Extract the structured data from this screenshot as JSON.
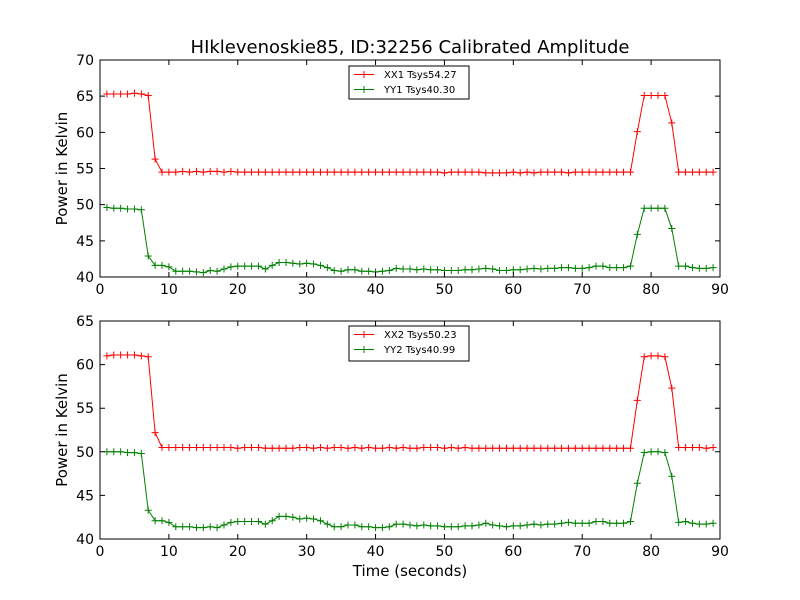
{
  "chart_data": [
    {
      "type": "line",
      "title": "HIklevenoskie85, ID:32256 Calibrated Amplitude",
      "xlabel": "",
      "ylabel": "Power in Kelvin",
      "xlim": [
        0,
        90
      ],
      "ylim": [
        40,
        70
      ],
      "xticks": [
        0,
        10,
        20,
        30,
        40,
        50,
        60,
        70,
        80,
        90
      ],
      "yticks": [
        40,
        45,
        50,
        55,
        60,
        65,
        70
      ],
      "grid": false,
      "legend": "top-center",
      "series": [
        {
          "name": "XX1 Tsys54.27",
          "color": "#ff0000",
          "marker": "+",
          "x": [
            1,
            2,
            3,
            4,
            5,
            6,
            7,
            8,
            9,
            10,
            11,
            12,
            13,
            14,
            15,
            16,
            17,
            18,
            19,
            20,
            21,
            22,
            23,
            24,
            25,
            26,
            27,
            28,
            29,
            30,
            31,
            32,
            33,
            34,
            35,
            36,
            37,
            38,
            39,
            40,
            41,
            42,
            43,
            44,
            45,
            46,
            47,
            48,
            49,
            50,
            51,
            52,
            53,
            54,
            55,
            56,
            57,
            58,
            59,
            60,
            61,
            62,
            63,
            64,
            65,
            66,
            67,
            68,
            69,
            70,
            71,
            72,
            73,
            74,
            75,
            76,
            77,
            78,
            79,
            80,
            81,
            82,
            83,
            84,
            85,
            86,
            87,
            88,
            89
          ],
          "y": [
            65.3,
            65.3,
            65.3,
            65.3,
            65.4,
            65.3,
            65.1,
            56.3,
            54.5,
            54.5,
            54.5,
            54.6,
            54.5,
            54.6,
            54.5,
            54.6,
            54.6,
            54.5,
            54.6,
            54.5,
            54.5,
            54.5,
            54.5,
            54.5,
            54.5,
            54.5,
            54.5,
            54.5,
            54.5,
            54.5,
            54.5,
            54.5,
            54.5,
            54.5,
            54.5,
            54.5,
            54.5,
            54.5,
            54.5,
            54.5,
            54.5,
            54.5,
            54.5,
            54.5,
            54.5,
            54.5,
            54.5,
            54.5,
            54.5,
            54.4,
            54.5,
            54.5,
            54.5,
            54.5,
            54.5,
            54.4,
            54.4,
            54.4,
            54.4,
            54.5,
            54.4,
            54.5,
            54.4,
            54.5,
            54.5,
            54.5,
            54.5,
            54.4,
            54.5,
            54.5,
            54.5,
            54.5,
            54.5,
            54.5,
            54.5,
            54.5,
            54.5,
            60.1,
            65.1,
            65.1,
            65.1,
            65.1,
            61.3,
            54.5,
            54.5,
            54.5,
            54.5,
            54.5,
            54.5
          ]
        },
        {
          "name": "YY1 Tsys40.30",
          "color": "#008000",
          "marker": "+",
          "x": [
            1,
            2,
            3,
            4,
            5,
            6,
            7,
            8,
            9,
            10,
            11,
            12,
            13,
            14,
            15,
            16,
            17,
            18,
            19,
            20,
            21,
            22,
            23,
            24,
            25,
            26,
            27,
            28,
            29,
            30,
            31,
            32,
            33,
            34,
            35,
            36,
            37,
            38,
            39,
            40,
            41,
            42,
            43,
            44,
            45,
            46,
            47,
            48,
            49,
            50,
            51,
            52,
            53,
            54,
            55,
            56,
            57,
            58,
            59,
            60,
            61,
            62,
            63,
            64,
            65,
            66,
            67,
            68,
            69,
            70,
            71,
            72,
            73,
            74,
            75,
            76,
            77,
            78,
            79,
            80,
            81,
            82,
            83,
            84,
            85,
            86,
            87,
            88,
            89
          ],
          "y": [
            49.6,
            49.5,
            49.5,
            49.4,
            49.4,
            49.3,
            42.9,
            41.6,
            41.6,
            41.4,
            40.8,
            40.8,
            40.8,
            40.7,
            40.6,
            40.9,
            40.8,
            41.1,
            41.4,
            41.5,
            41.5,
            41.5,
            41.5,
            41.1,
            41.6,
            42.0,
            42.0,
            41.9,
            41.8,
            41.9,
            41.8,
            41.6,
            41.3,
            40.9,
            40.8,
            41.0,
            41.0,
            40.8,
            40.8,
            40.7,
            40.8,
            40.9,
            41.2,
            41.1,
            41.1,
            41.0,
            41.1,
            41.0,
            41.0,
            40.9,
            40.9,
            40.9,
            41.0,
            41.0,
            41.1,
            41.2,
            41.1,
            40.9,
            40.9,
            41.0,
            41.0,
            41.1,
            41.2,
            41.1,
            41.2,
            41.2,
            41.3,
            41.3,
            41.2,
            41.2,
            41.3,
            41.5,
            41.5,
            41.3,
            41.3,
            41.3,
            41.5,
            45.9,
            49.5,
            49.5,
            49.5,
            49.5,
            46.7,
            41.5,
            41.5,
            41.3,
            41.2,
            41.2,
            41.3
          ]
        }
      ]
    },
    {
      "type": "line",
      "title": "",
      "xlabel": "Time (seconds)",
      "ylabel": "Power in Kelvin",
      "xlim": [
        0,
        90
      ],
      "ylim": [
        40,
        65
      ],
      "xticks": [
        0,
        10,
        20,
        30,
        40,
        50,
        60,
        70,
        80,
        90
      ],
      "yticks": [
        40,
        45,
        50,
        55,
        60,
        65
      ],
      "grid": false,
      "legend": "top-center",
      "series": [
        {
          "name": "XX2 Tsys50.23",
          "color": "#ff0000",
          "marker": "+",
          "x": [
            1,
            2,
            3,
            4,
            5,
            6,
            7,
            8,
            9,
            10,
            11,
            12,
            13,
            14,
            15,
            16,
            17,
            18,
            19,
            20,
            21,
            22,
            23,
            24,
            25,
            26,
            27,
            28,
            29,
            30,
            31,
            32,
            33,
            34,
            35,
            36,
            37,
            38,
            39,
            40,
            41,
            42,
            43,
            44,
            45,
            46,
            47,
            48,
            49,
            50,
            51,
            52,
            53,
            54,
            55,
            56,
            57,
            58,
            59,
            60,
            61,
            62,
            63,
            64,
            65,
            66,
            67,
            68,
            69,
            70,
            71,
            72,
            73,
            74,
            75,
            76,
            77,
            78,
            79,
            80,
            81,
            82,
            83,
            84,
            85,
            86,
            87,
            88,
            89
          ],
          "y": [
            61.0,
            61.1,
            61.1,
            61.1,
            61.1,
            61.0,
            60.9,
            52.2,
            50.5,
            50.5,
            50.5,
            50.5,
            50.5,
            50.5,
            50.5,
            50.5,
            50.5,
            50.5,
            50.5,
            50.4,
            50.5,
            50.5,
            50.5,
            50.4,
            50.4,
            50.4,
            50.4,
            50.4,
            50.5,
            50.5,
            50.4,
            50.5,
            50.4,
            50.5,
            50.5,
            50.4,
            50.5,
            50.4,
            50.5,
            50.4,
            50.4,
            50.5,
            50.4,
            50.5,
            50.4,
            50.4,
            50.5,
            50.5,
            50.5,
            50.4,
            50.5,
            50.4,
            50.5,
            50.4,
            50.4,
            50.4,
            50.4,
            50.4,
            50.4,
            50.4,
            50.4,
            50.4,
            50.4,
            50.4,
            50.4,
            50.4,
            50.4,
            50.4,
            50.4,
            50.4,
            50.4,
            50.4,
            50.4,
            50.4,
            50.4,
            50.4,
            50.4,
            55.9,
            60.9,
            61.0,
            61.0,
            60.9,
            57.3,
            50.5,
            50.5,
            50.5,
            50.5,
            50.4,
            50.5
          ]
        },
        {
          "name": "YY2 Tsys40.99",
          "color": "#008000",
          "marker": "+",
          "x": [
            1,
            2,
            3,
            4,
            5,
            6,
            7,
            8,
            9,
            10,
            11,
            12,
            13,
            14,
            15,
            16,
            17,
            18,
            19,
            20,
            21,
            22,
            23,
            24,
            25,
            26,
            27,
            28,
            29,
            30,
            31,
            32,
            33,
            34,
            35,
            36,
            37,
            38,
            39,
            40,
            41,
            42,
            43,
            44,
            45,
            46,
            47,
            48,
            49,
            50,
            51,
            52,
            53,
            54,
            55,
            56,
            57,
            58,
            59,
            60,
            61,
            62,
            63,
            64,
            65,
            66,
            67,
            68,
            69,
            70,
            71,
            72,
            73,
            74,
            75,
            76,
            77,
            78,
            79,
            80,
            81,
            82,
            83,
            84,
            85,
            86,
            87,
            88,
            89
          ],
          "y": [
            50.0,
            50.0,
            50.0,
            49.9,
            49.9,
            49.8,
            43.3,
            42.1,
            42.1,
            41.9,
            41.4,
            41.4,
            41.4,
            41.3,
            41.3,
            41.4,
            41.3,
            41.6,
            41.9,
            42.0,
            42.0,
            42.0,
            42.0,
            41.7,
            42.1,
            42.6,
            42.6,
            42.5,
            42.3,
            42.4,
            42.3,
            42.1,
            41.7,
            41.4,
            41.4,
            41.6,
            41.6,
            41.4,
            41.4,
            41.3,
            41.3,
            41.4,
            41.7,
            41.7,
            41.6,
            41.5,
            41.6,
            41.5,
            41.5,
            41.4,
            41.4,
            41.4,
            41.5,
            41.5,
            41.6,
            41.8,
            41.6,
            41.5,
            41.4,
            41.5,
            41.5,
            41.6,
            41.7,
            41.6,
            41.7,
            41.7,
            41.8,
            41.9,
            41.8,
            41.8,
            41.8,
            42.0,
            42.0,
            41.8,
            41.8,
            41.8,
            42.0,
            46.4,
            49.9,
            50.0,
            50.0,
            49.9,
            47.2,
            41.9,
            42.0,
            41.8,
            41.7,
            41.7,
            41.8
          ]
        }
      ]
    }
  ]
}
